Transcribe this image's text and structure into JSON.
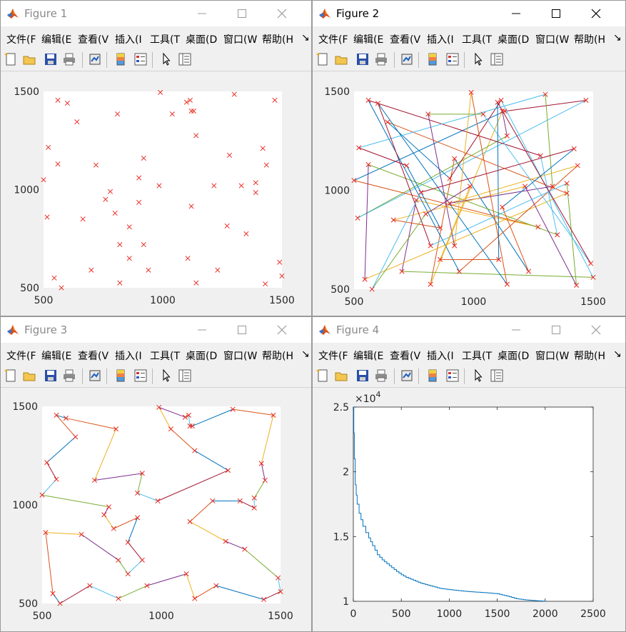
{
  "windows": [
    {
      "title": "Figure 1",
      "active": false,
      "plot": "points"
    },
    {
      "title": "Figure 2",
      "active": true,
      "plot": "random-tour"
    },
    {
      "title": "Figure 3",
      "active": false,
      "plot": "optimized-tour"
    },
    {
      "title": "Figure 4",
      "active": false,
      "plot": "convergence"
    }
  ],
  "menu": [
    "文件(F",
    "编辑(E",
    "查看(V",
    "插入(I",
    "工具(T",
    "桌面(D",
    "窗口(W",
    "帮助(H"
  ],
  "menu_more": "↘",
  "axes": {
    "xticks": [
      "500",
      "1000",
      "1500"
    ],
    "yticks": [
      "500",
      "1000",
      "1500"
    ],
    "fig4_xticks": [
      "0",
      "500",
      "1000",
      "1500",
      "2000",
      "2500"
    ],
    "fig4_yticks": [
      "1",
      "1.5",
      "2",
      "2.5"
    ],
    "fig4_exponent_base": "×10",
    "fig4_exponent_power": "4"
  },
  "colors": {
    "marker": "#e8271e",
    "tour": [
      "#0072bd",
      "#d95319",
      "#edb120",
      "#7e2f8e",
      "#77ac30",
      "#4dbeee",
      "#a2142f"
    ],
    "convergence": "#0072bd"
  },
  "chart_data": [
    {
      "type": "scatter",
      "window": "Figure 1",
      "xlim": [
        500,
        1500
      ],
      "ylim": [
        500,
        1500
      ],
      "points": [
        [
          560,
          1455
        ],
        [
          600,
          1440
        ],
        [
          990,
          1495
        ],
        [
          1100,
          1445
        ],
        [
          1115,
          1455
        ],
        [
          1300,
          1485
        ],
        [
          1470,
          1455
        ],
        [
          810,
          1385
        ],
        [
          1040,
          1385
        ],
        [
          1130,
          1400
        ],
        [
          1120,
          1400
        ],
        [
          640,
          1345
        ],
        [
          1140,
          1275
        ],
        [
          520,
          1215
        ],
        [
          1420,
          1210
        ],
        [
          1280,
          1175
        ],
        [
          560,
          1130
        ],
        [
          720,
          1125
        ],
        [
          920,
          1160
        ],
        [
          1435,
          1125
        ],
        [
          500,
          1050
        ],
        [
          900,
          1060
        ],
        [
          1390,
          1035
        ],
        [
          1330,
          1020
        ],
        [
          985,
          1020
        ],
        [
          1215,
          1020
        ],
        [
          780,
          990
        ],
        [
          760,
          950
        ],
        [
          1390,
          985
        ],
        [
          900,
          935
        ],
        [
          1120,
          915
        ],
        [
          800,
          880
        ],
        [
          515,
          860
        ],
        [
          665,
          850
        ],
        [
          1270,
          815
        ],
        [
          860,
          810
        ],
        [
          1350,
          775
        ],
        [
          820,
          720
        ],
        [
          920,
          720
        ],
        [
          860,
          650
        ],
        [
          1105,
          650
        ],
        [
          1490,
          630
        ],
        [
          940,
          590
        ],
        [
          1230,
          590
        ],
        [
          700,
          590
        ],
        [
          1500,
          560
        ],
        [
          545,
          550
        ],
        [
          575,
          500
        ],
        [
          820,
          525
        ],
        [
          1140,
          525
        ],
        [
          1430,
          520
        ]
      ]
    },
    {
      "type": "line",
      "window": "Figure 2",
      "tour_order": "random"
    },
    {
      "type": "line",
      "window": "Figure 3",
      "tour_order": "optimized"
    },
    {
      "type": "line",
      "window": "Figure 4",
      "xlim": [
        0,
        2500
      ],
      "ylim": [
        10000,
        25000
      ],
      "x": [
        0,
        5,
        10,
        20,
        30,
        40,
        60,
        80,
        100,
        130,
        160,
        200,
        250,
        300,
        350,
        400,
        450,
        500,
        550,
        600,
        650,
        700,
        800,
        900,
        1000,
        1100,
        1200,
        1300,
        1400,
        1500,
        1600,
        1700,
        1800,
        1900,
        2000
      ],
      "y": [
        25000,
        23000,
        21000,
        19000,
        18200,
        17500,
        16800,
        16300,
        15800,
        15300,
        14900,
        14300,
        13600,
        13200,
        12900,
        12600,
        12300,
        12050,
        11850,
        11700,
        11550,
        11400,
        11200,
        11000,
        10900,
        10820,
        10750,
        10700,
        10650,
        10580,
        10400,
        10200,
        10100,
        10050,
        10000
      ]
    }
  ]
}
